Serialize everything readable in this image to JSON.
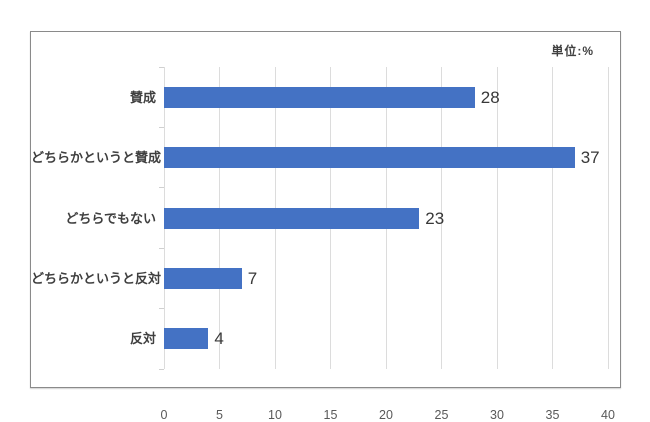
{
  "unit_label": "単位:%",
  "chart_data": {
    "type": "bar",
    "orientation": "horizontal",
    "title": "",
    "categories": [
      "賛成",
      "どちらかというと賛成",
      "どちらでもない",
      "どちらかというと反対",
      "反対"
    ],
    "values": [
      28,
      37,
      23,
      7,
      4
    ],
    "xlabel": "",
    "ylabel": "",
    "xlim": [
      0,
      40
    ],
    "xticks": [
      0,
      5,
      10,
      15,
      20,
      25,
      30,
      35,
      40
    ],
    "grid": true,
    "value_labels": true,
    "legend": "none",
    "colors": {
      "bar": "#4472c4",
      "gridline": "#dcdcdc",
      "frame_border": "#8a8a8a",
      "value_text": "#383838",
      "category_text": "#3f3f3f",
      "tick_text": "#595959",
      "unit_text": "#404040",
      "background": "#ffffff"
    }
  }
}
